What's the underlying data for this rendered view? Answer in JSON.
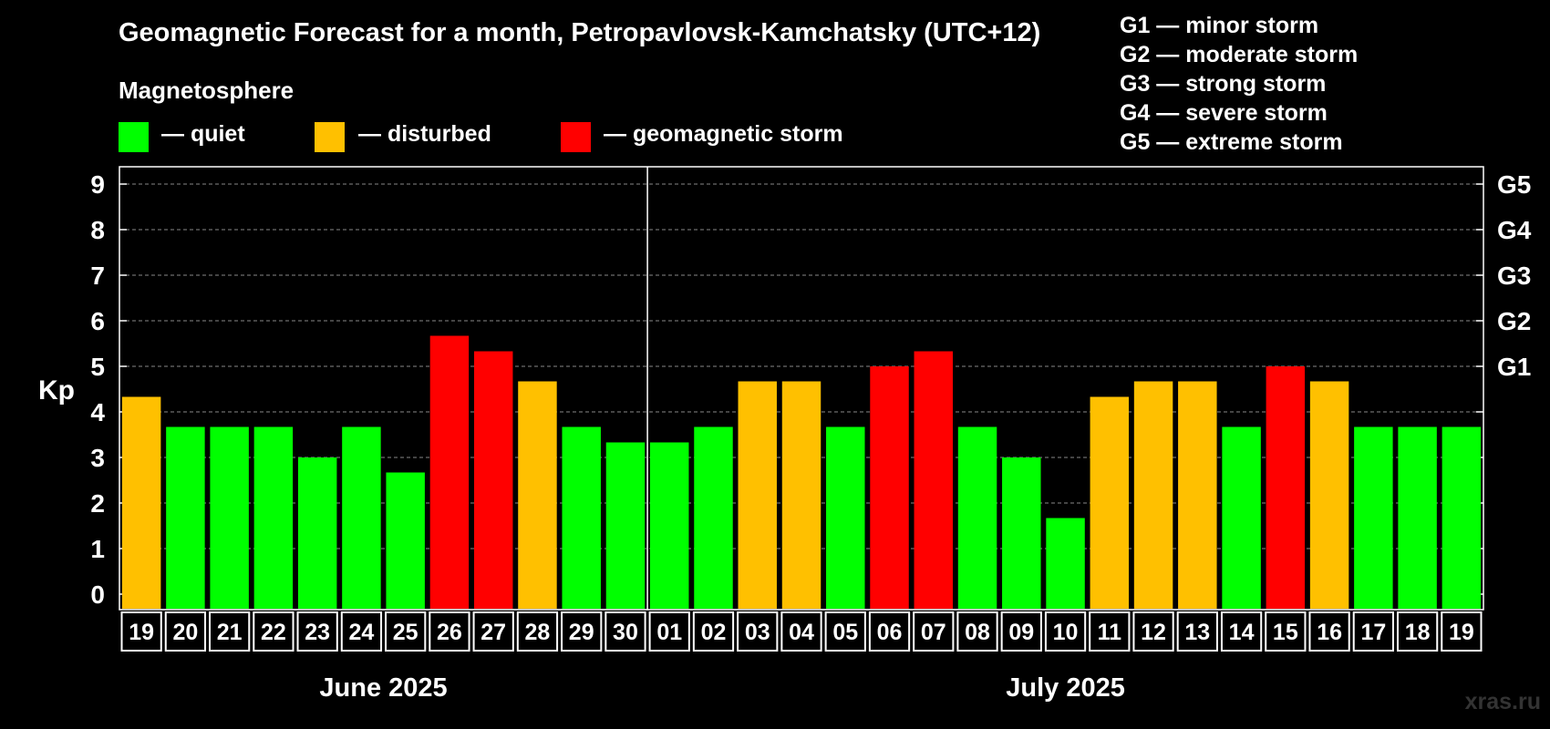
{
  "chart_data": {
    "type": "bar",
    "title": "Geomagnetic Forecast for a month, Petropavlovsk-Kamchatsky (UTC+12)",
    "legend": {
      "heading": "Magnetosphere",
      "items": [
        {
          "key": "quiet",
          "label": "— quiet",
          "color": "#00ff00"
        },
        {
          "key": "disturbed",
          "label": "— disturbed",
          "color": "#ffc000"
        },
        {
          "key": "storm",
          "label": "— geomagnetic storm",
          "color": "#ff0000"
        }
      ]
    },
    "storm_scale": [
      "G1 — minor storm",
      "G2 — moderate storm",
      "G3 — strong storm",
      "G4 — severe storm",
      "G5 — extreme storm"
    ],
    "ylabel": "Kp",
    "ylim": [
      0,
      9
    ],
    "yticks": [
      0,
      1,
      2,
      3,
      4,
      5,
      6,
      7,
      8,
      9
    ],
    "right_axis": [
      {
        "kp": 5,
        "label": "G1"
      },
      {
        "kp": 6,
        "label": "G2"
      },
      {
        "kp": 7,
        "label": "G3"
      },
      {
        "kp": 8,
        "label": "G4"
      },
      {
        "kp": 9,
        "label": "G5"
      }
    ],
    "categories": [
      "19",
      "20",
      "21",
      "22",
      "23",
      "24",
      "25",
      "26",
      "27",
      "28",
      "29",
      "30",
      "01",
      "02",
      "03",
      "04",
      "05",
      "06",
      "07",
      "08",
      "09",
      "10",
      "11",
      "12",
      "13",
      "14",
      "15",
      "16",
      "17",
      "18",
      "19"
    ],
    "values": [
      4.33,
      3.67,
      3.67,
      3.67,
      3.0,
      3.67,
      2.67,
      5.67,
      5.33,
      4.67,
      3.67,
      3.33,
      3.33,
      3.67,
      4.67,
      4.67,
      3.67,
      5.0,
      5.33,
      3.67,
      3.0,
      1.67,
      4.33,
      4.67,
      4.67,
      3.67,
      5.0,
      4.67,
      3.67,
      3.67,
      3.67
    ],
    "levels": [
      "disturbed",
      "quiet",
      "quiet",
      "quiet",
      "quiet",
      "quiet",
      "quiet",
      "storm",
      "storm",
      "disturbed",
      "quiet",
      "quiet",
      "quiet",
      "quiet",
      "disturbed",
      "disturbed",
      "quiet",
      "storm",
      "storm",
      "quiet",
      "quiet",
      "quiet",
      "disturbed",
      "disturbed",
      "disturbed",
      "quiet",
      "storm",
      "disturbed",
      "quiet",
      "quiet",
      "quiet"
    ],
    "months": [
      {
        "label": "June 2025",
        "start": 0,
        "end": 11
      },
      {
        "label": "July 2025",
        "start": 12,
        "end": 30
      }
    ],
    "grid": true
  },
  "watermark": "xras.ru"
}
